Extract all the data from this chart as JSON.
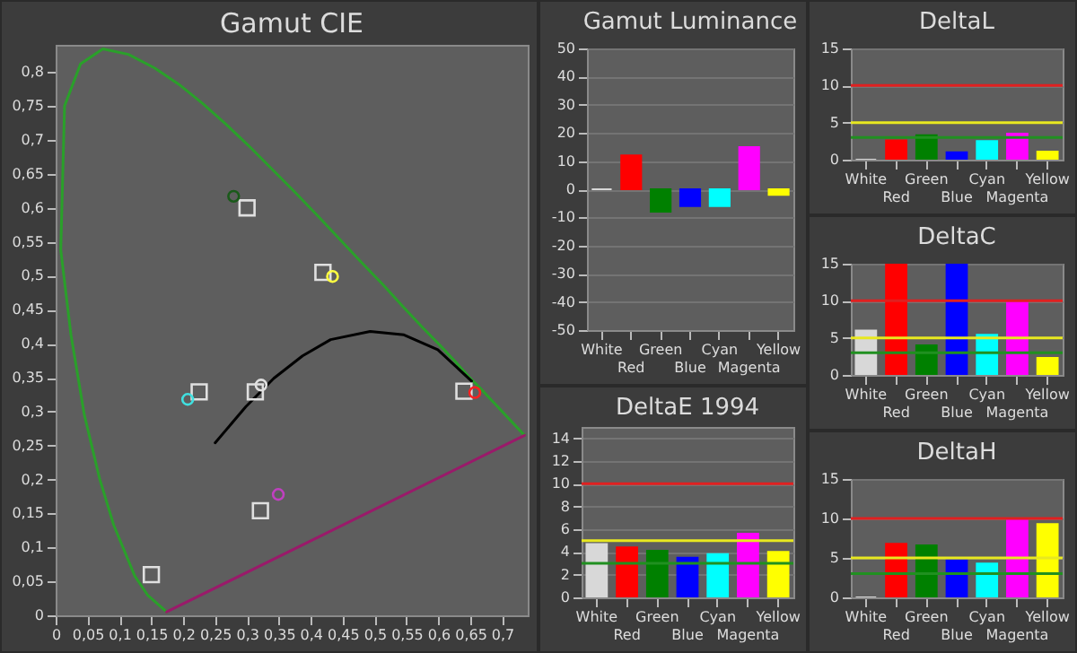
{
  "chart_data": [
    {
      "type": "scatter",
      "title": "Gamut CIE",
      "grid": false,
      "xlim": [
        0,
        0.74
      ],
      "ylim": [
        0,
        0.84
      ],
      "xticks": [
        {
          "value": 0,
          "label": "0"
        },
        {
          "value": 0.05,
          "label": "0,05"
        },
        {
          "value": 0.1,
          "label": "0,1"
        },
        {
          "value": 0.15,
          "label": "0,15"
        },
        {
          "value": 0.2,
          "label": "0,2"
        },
        {
          "value": 0.25,
          "label": "0,25"
        },
        {
          "value": 0.3,
          "label": "0,3"
        },
        {
          "value": 0.35,
          "label": "0,35"
        },
        {
          "value": 0.4,
          "label": "0,4"
        },
        {
          "value": 0.45,
          "label": "0,45"
        },
        {
          "value": 0.5,
          "label": "0,5"
        },
        {
          "value": 0.55,
          "label": "0,55"
        },
        {
          "value": 0.6,
          "label": "0,6"
        },
        {
          "value": 0.65,
          "label": "0,65"
        },
        {
          "value": 0.7,
          "label": "0,7"
        }
      ],
      "yticks": [
        {
          "value": 0,
          "label": "0"
        },
        {
          "value": 0.05,
          "label": "0,05"
        },
        {
          "value": 0.1,
          "label": "0,1"
        },
        {
          "value": 0.15,
          "label": "0,15"
        },
        {
          "value": 0.2,
          "label": "0,2"
        },
        {
          "value": 0.25,
          "label": "0,25"
        },
        {
          "value": 0.3,
          "label": "0,3"
        },
        {
          "value": 0.35,
          "label": "0,35"
        },
        {
          "value": 0.4,
          "label": "0,4"
        },
        {
          "value": 0.45,
          "label": "0,45"
        },
        {
          "value": 0.5,
          "label": "0,5"
        },
        {
          "value": 0.55,
          "label": "0,55"
        },
        {
          "value": 0.6,
          "label": "0,6"
        },
        {
          "value": 0.65,
          "label": "0,65"
        },
        {
          "value": 0.7,
          "label": "0,7"
        },
        {
          "value": 0.75,
          "label": "0,75"
        },
        {
          "value": 0.8,
          "label": "0,8"
        }
      ],
      "series": [
        {
          "type": "line",
          "color": "#2aa02a",
          "x": [
            0.174,
            0.144,
            0.124,
            0.091,
            0.069,
            0.045,
            0.024,
            0.008,
            0.014,
            0.039,
            0.074,
            0.114,
            0.155,
            0.193,
            0.23,
            0.266,
            0.302,
            0.337,
            0.373,
            0.409,
            0.444,
            0.479,
            0.513,
            0.545,
            0.575,
            0.603,
            0.627,
            0.648,
            0.666,
            0.68,
            0.692,
            0.701,
            0.735
          ],
          "values": [
            0.005,
            0.03,
            0.058,
            0.133,
            0.201,
            0.295,
            0.413,
            0.538,
            0.75,
            0.812,
            0.834,
            0.826,
            0.806,
            0.782,
            0.754,
            0.724,
            0.692,
            0.659,
            0.625,
            0.59,
            0.555,
            0.52,
            0.487,
            0.454,
            0.424,
            0.397,
            0.373,
            0.351,
            0.334,
            0.32,
            0.308,
            0.299,
            0.265
          ]
        },
        {
          "type": "line",
          "color": "#9a1a6a",
          "x": [
            0.174,
            0.735
          ],
          "values": [
            0.005,
            0.265
          ]
        },
        {
          "type": "line",
          "color": "#000000",
          "x": [
            0.25,
            0.298,
            0.342,
            0.387,
            0.431,
            0.493,
            0.546,
            0.599,
            0.652
          ],
          "values": [
            0.254,
            0.307,
            0.349,
            0.382,
            0.406,
            0.418,
            0.413,
            0.391,
            0.345
          ]
        },
        {
          "type": "scatter",
          "marker": "square",
          "color": "#e0e0e0",
          "x": [
            0.313,
            0.64,
            0.3,
            0.15,
            0.225,
            0.321,
            0.419
          ],
          "values": [
            0.329,
            0.33,
            0.6,
            0.06,
            0.329,
            0.154,
            0.505
          ]
        },
        {
          "type": "scatter",
          "marker": "circle",
          "colors": [
            "#e0e0e0",
            "#ff2020",
            "#1a5a1a",
            "#2020ff",
            "#40e0e0",
            "#c040c0",
            "#ffff40"
          ],
          "x": [
            0.322,
            0.657,
            0.279,
            null,
            0.207,
            0.349,
            0.434
          ],
          "values": [
            0.339,
            0.328,
            0.617,
            null,
            0.318,
            0.178,
            0.499
          ]
        }
      ]
    },
    {
      "type": "bar",
      "title": "Gamut Luminance",
      "grid": "y",
      "categories": [
        "White",
        "Red",
        "Green",
        "Blue",
        "Cyan",
        "Magenta",
        "Yellow"
      ],
      "colors": [
        "#d8d8d8",
        "#ff0000",
        "#008000",
        "#0000ff",
        "#00ffff",
        "#ff00ff",
        "#ffff00"
      ],
      "values": [
        0,
        12,
        -8,
        -6,
        -6,
        15,
        -2
      ],
      "ylim": [
        -50,
        50
      ],
      "yticks": [
        -50,
        -40,
        -30,
        -20,
        -10,
        0,
        10,
        20,
        30,
        40,
        50
      ]
    },
    {
      "type": "bar",
      "title": "DeltaE 1994",
      "grid": "y",
      "categories": [
        "White",
        "Red",
        "Green",
        "Blue",
        "Cyan",
        "Magenta",
        "Yellow"
      ],
      "colors": [
        "#d8d8d8",
        "#ff0000",
        "#008000",
        "#0000ff",
        "#00ffff",
        "#ff00ff",
        "#ffff00"
      ],
      "values": [
        4.7,
        4.4,
        4.1,
        3.5,
        3.8,
        5.6,
        4.0
      ],
      "ylim": [
        0,
        15
      ],
      "yticks": [
        0,
        2,
        4,
        6,
        8,
        10,
        12,
        14
      ],
      "ref_lines": [
        {
          "axis": "y",
          "value": 10,
          "color": "#e02020"
        },
        {
          "axis": "y",
          "value": 5,
          "color": "#e8e820"
        },
        {
          "axis": "y",
          "value": 3,
          "color": "#209020"
        }
      ]
    },
    {
      "type": "bar",
      "title": "DeltaL",
      "grid": "y",
      "categories": [
        "White",
        "Red",
        "Green",
        "Blue",
        "Cyan",
        "Magenta",
        "Yellow"
      ],
      "colors": [
        "#d8d8d8",
        "#ff0000",
        "#008000",
        "#0000ff",
        "#00ffff",
        "#ff00ff",
        "#ffff00"
      ],
      "values": [
        0,
        2.6,
        3.3,
        1.0,
        2.5,
        3.5,
        1.1
      ],
      "ylim": [
        0,
        15
      ],
      "yticks": [
        0,
        5,
        10,
        15
      ],
      "ref_lines": [
        {
          "axis": "y",
          "value": 10,
          "color": "#e02020"
        },
        {
          "axis": "y",
          "value": 5,
          "color": "#e8e820"
        },
        {
          "axis": "y",
          "value": 3,
          "color": "#209020"
        }
      ]
    },
    {
      "type": "bar",
      "title": "DeltaC",
      "grid": "y",
      "categories": [
        "White",
        "Red",
        "Green",
        "Blue",
        "Cyan",
        "Magenta",
        "Yellow"
      ],
      "colors": [
        "#d8d8d8",
        "#ff0000",
        "#008000",
        "#0000ff",
        "#00ffff",
        "#ff00ff",
        "#ffff00"
      ],
      "values": [
        6.0,
        15,
        4.0,
        15,
        5.4,
        9.8,
        2.3
      ],
      "ylim": [
        0,
        15
      ],
      "yticks": [
        0,
        5,
        10,
        15
      ],
      "ref_lines": [
        {
          "axis": "y",
          "value": 10,
          "color": "#e02020"
        },
        {
          "axis": "y",
          "value": 5,
          "color": "#e8e820"
        },
        {
          "axis": "y",
          "value": 3,
          "color": "#209020"
        }
      ]
    },
    {
      "type": "bar",
      "title": "DeltaH",
      "grid": "y",
      "categories": [
        "White",
        "Red",
        "Green",
        "Blue",
        "Cyan",
        "Magenta",
        "Yellow"
      ],
      "colors": [
        "#d8d8d8",
        "#ff0000",
        "#008000",
        "#0000ff",
        "#00ffff",
        "#ff00ff",
        "#ffff00"
      ],
      "values": [
        0,
        6.8,
        6.6,
        4.7,
        4.3,
        10.0,
        9.3
      ],
      "ylim": [
        0,
        15
      ],
      "yticks": [
        0,
        5,
        10,
        15
      ],
      "ref_lines": [
        {
          "axis": "y",
          "value": 10,
          "color": "#e02020"
        },
        {
          "axis": "y",
          "value": 5,
          "color": "#e8e820"
        },
        {
          "axis": "y",
          "value": 3,
          "color": "#209020"
        }
      ]
    }
  ]
}
